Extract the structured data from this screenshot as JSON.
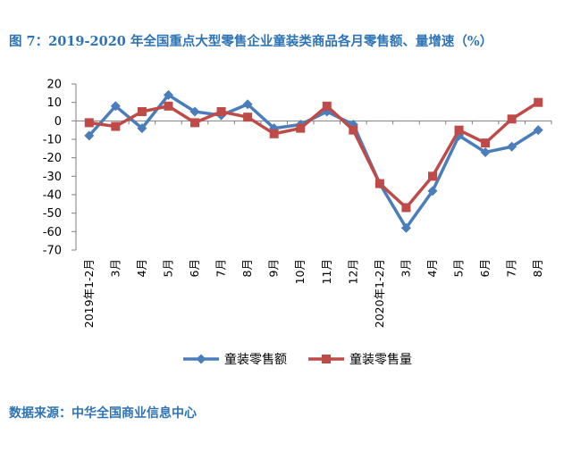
{
  "page": {
    "title": "图 7：2019-2020 年全国重点大型零售企业童装类商品各月零售额、量增速（%）",
    "source": "数据来源：中华全国商业信息中心"
  },
  "chart_data": {
    "type": "line",
    "categories": [
      "2019年1-2月",
      "3月",
      "4月",
      "5月",
      "6月",
      "7月",
      "8月",
      "9月",
      "10月",
      "11月",
      "12月",
      "2020年1-2月",
      "3月",
      "4月",
      "5月",
      "6月",
      "7月",
      "8月"
    ],
    "series": [
      {
        "name": "童装零售额",
        "color": "#4a7ebb",
        "marker": "diamond",
        "values": [
          -8,
          8,
          -4,
          14,
          5,
          3,
          9,
          -4,
          -2,
          5,
          -2,
          -34,
          -58,
          -38,
          -8,
          -17,
          -14,
          -5
        ]
      },
      {
        "name": "童装零售量",
        "color": "#be4b48",
        "marker": "square",
        "values": [
          -1,
          -3,
          5,
          8,
          -1,
          5,
          2,
          -7,
          -4,
          8,
          -5,
          -34,
          -47,
          -30,
          -5,
          -12,
          1,
          10
        ]
      }
    ],
    "yticks": [
      20,
      10,
      0,
      -10,
      -20,
      -30,
      -40,
      -50,
      -60,
      -70
    ],
    "ylim": [
      -70,
      20
    ],
    "xlabel": "",
    "ylabel": "",
    "legend": "bottom",
    "grid": false
  }
}
